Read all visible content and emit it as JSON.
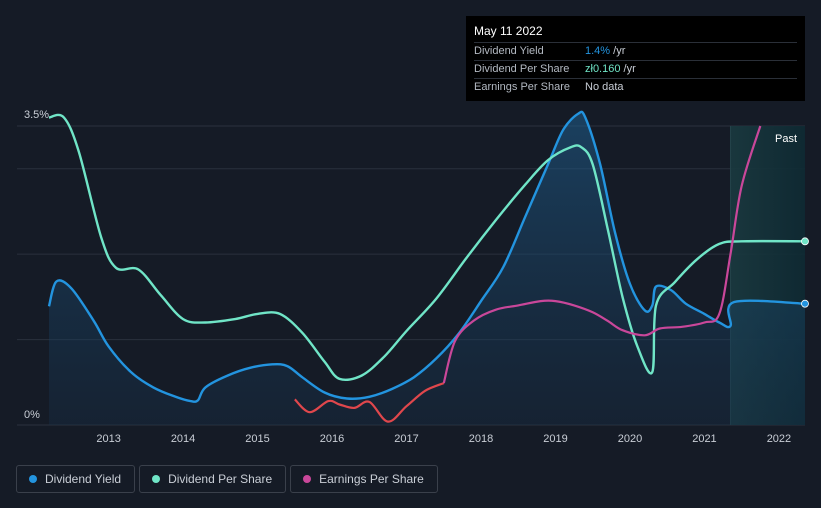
{
  "tooltip": {
    "date": "May 11 2022",
    "rows": [
      {
        "label": "Dividend Yield",
        "value": "1.4%",
        "unit": " /yr"
      },
      {
        "label": "Dividend Per Share",
        "value": "zł0.160",
        "unit": " /yr"
      },
      {
        "label": "Earnings Per Share",
        "value": "No data",
        "unit": ""
      }
    ]
  },
  "legend": [
    {
      "label": "Dividend Yield",
      "color": "#2394df"
    },
    {
      "label": "Dividend Per Share",
      "color": "#70e5c7"
    },
    {
      "label": "Earnings Per Share",
      "color": "#c9479a"
    }
  ],
  "chart_data": {
    "type": "area",
    "past_label": "Past",
    "y_tick_labels": [
      "3.5%",
      "0%"
    ],
    "ylim": [
      0,
      3.5
    ],
    "xlim": [
      2012.2,
      2022.35
    ],
    "x_ticks": [
      2013,
      2014,
      2015,
      2016,
      2017,
      2018,
      2019,
      2020,
      2021,
      2022
    ],
    "grid": true,
    "forecast_start": 2021.35,
    "colors": {
      "yield": "#2394df",
      "dps": "#70e5c7",
      "eps_pos": "#c9479a",
      "eps_neg": "#e0474c"
    },
    "series": [
      {
        "name": "Dividend Yield",
        "key": "yield",
        "filled": true,
        "points": [
          [
            2012.2,
            1.39
          ],
          [
            2012.3,
            1.68
          ],
          [
            2012.5,
            1.6
          ],
          [
            2012.8,
            1.22
          ],
          [
            2013.0,
            0.92
          ],
          [
            2013.3,
            0.62
          ],
          [
            2013.6,
            0.44
          ],
          [
            2013.9,
            0.33
          ],
          [
            2014.1,
            0.28
          ],
          [
            2014.2,
            0.29
          ],
          [
            2014.3,
            0.44
          ],
          [
            2014.6,
            0.58
          ],
          [
            2014.9,
            0.67
          ],
          [
            2015.2,
            0.71
          ],
          [
            2015.4,
            0.69
          ],
          [
            2015.6,
            0.56
          ],
          [
            2015.9,
            0.38
          ],
          [
            2016.2,
            0.31
          ],
          [
            2016.5,
            0.33
          ],
          [
            2016.8,
            0.42
          ],
          [
            2017.1,
            0.56
          ],
          [
            2017.4,
            0.78
          ],
          [
            2017.7,
            1.07
          ],
          [
            2018.0,
            1.45
          ],
          [
            2018.3,
            1.85
          ],
          [
            2018.6,
            2.45
          ],
          [
            2018.9,
            3.05
          ],
          [
            2019.1,
            3.45
          ],
          [
            2019.3,
            3.64
          ],
          [
            2019.4,
            3.6
          ],
          [
            2019.6,
            3.05
          ],
          [
            2019.8,
            2.25
          ],
          [
            2020.0,
            1.65
          ],
          [
            2020.2,
            1.34
          ],
          [
            2020.3,
            1.4
          ],
          [
            2020.35,
            1.62
          ],
          [
            2020.55,
            1.58
          ],
          [
            2020.75,
            1.42
          ],
          [
            2021.0,
            1.3
          ],
          [
            2021.2,
            1.2
          ],
          [
            2021.35,
            1.16
          ],
          [
            2021.4,
            1.44
          ],
          [
            2022.35,
            1.42
          ]
        ]
      },
      {
        "name": "Dividend Per Share",
        "key": "dps",
        "filled": false,
        "points": [
          [
            2012.2,
            3.6
          ],
          [
            2012.4,
            3.6
          ],
          [
            2012.6,
            3.2
          ],
          [
            2012.9,
            2.2
          ],
          [
            2013.1,
            1.84
          ],
          [
            2013.4,
            1.82
          ],
          [
            2013.7,
            1.52
          ],
          [
            2014.0,
            1.24
          ],
          [
            2014.3,
            1.2
          ],
          [
            2014.7,
            1.24
          ],
          [
            2015.0,
            1.3
          ],
          [
            2015.3,
            1.3
          ],
          [
            2015.6,
            1.08
          ],
          [
            2015.9,
            0.74
          ],
          [
            2016.1,
            0.54
          ],
          [
            2016.4,
            0.58
          ],
          [
            2016.7,
            0.8
          ],
          [
            2017.0,
            1.1
          ],
          [
            2017.4,
            1.48
          ],
          [
            2017.8,
            1.95
          ],
          [
            2018.2,
            2.4
          ],
          [
            2018.6,
            2.82
          ],
          [
            2018.9,
            3.1
          ],
          [
            2019.2,
            3.25
          ],
          [
            2019.35,
            3.25
          ],
          [
            2019.5,
            3.05
          ],
          [
            2019.7,
            2.3
          ],
          [
            2019.9,
            1.5
          ],
          [
            2020.1,
            0.92
          ],
          [
            2020.3,
            0.62
          ],
          [
            2020.35,
            1.4
          ],
          [
            2020.6,
            1.67
          ],
          [
            2020.9,
            1.94
          ],
          [
            2021.2,
            2.12
          ],
          [
            2021.5,
            2.15
          ],
          [
            2022.35,
            2.15
          ]
        ]
      },
      {
        "name": "Earnings Per Share",
        "key": "eps",
        "filled": false,
        "points": [
          [
            2015.5,
            0.3
          ],
          [
            2015.7,
            0.15
          ],
          [
            2015.95,
            0.28
          ],
          [
            2016.1,
            0.24
          ],
          [
            2016.3,
            0.2
          ],
          [
            2016.5,
            0.27
          ],
          [
            2016.75,
            0.04
          ],
          [
            2017.0,
            0.22
          ],
          [
            2017.25,
            0.4
          ],
          [
            2017.5,
            0.49
          ],
          [
            2017.65,
            0.98
          ],
          [
            2017.9,
            1.22
          ],
          [
            2018.2,
            1.35
          ],
          [
            2018.5,
            1.4
          ],
          [
            2018.8,
            1.45
          ],
          [
            2019.0,
            1.45
          ],
          [
            2019.25,
            1.4
          ],
          [
            2019.5,
            1.32
          ],
          [
            2019.7,
            1.22
          ],
          [
            2019.9,
            1.11
          ],
          [
            2020.2,
            1.05
          ],
          [
            2020.4,
            1.13
          ],
          [
            2020.7,
            1.15
          ],
          [
            2021.0,
            1.2
          ],
          [
            2021.2,
            1.3
          ],
          [
            2021.35,
            2.0
          ],
          [
            2021.5,
            2.8
          ],
          [
            2021.75,
            3.5
          ]
        ]
      }
    ]
  }
}
